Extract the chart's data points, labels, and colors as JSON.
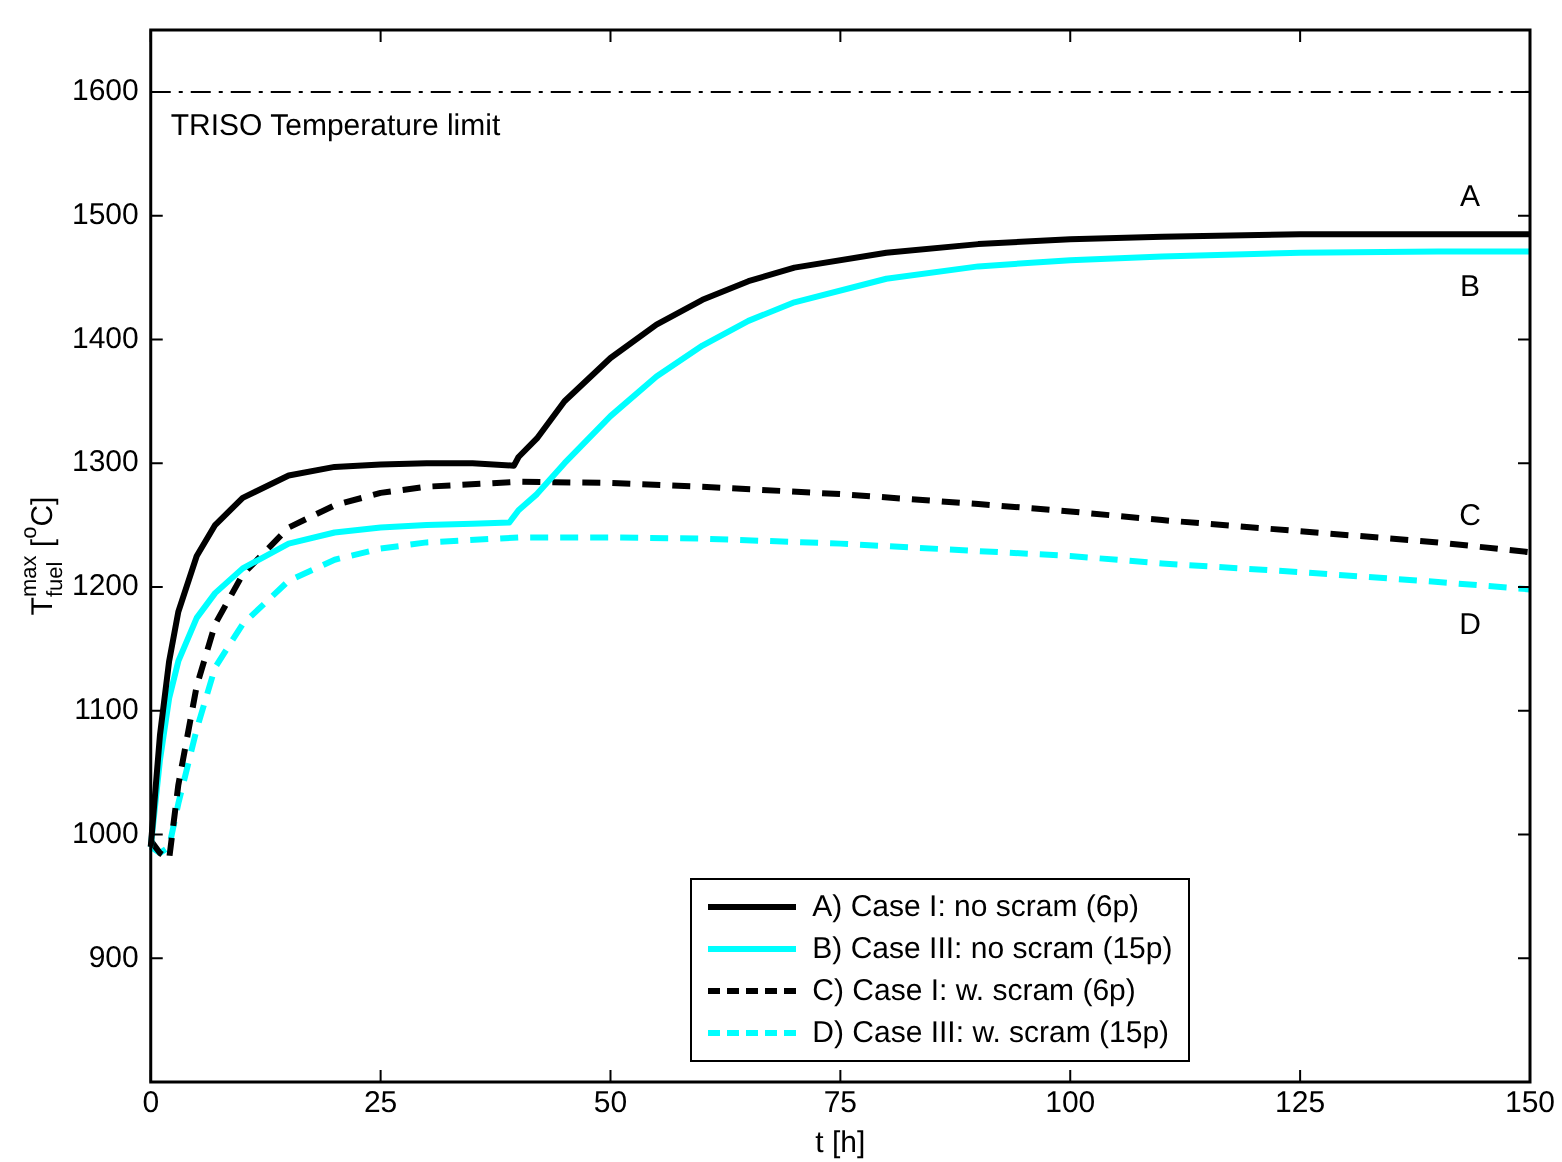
{
  "chart_data": {
    "type": "line",
    "xlabel": "t [h]",
    "ylabel": "T$^{max}$$_{fuel}$ [$^{o}$C]",
    "xlim": [
      0,
      150
    ],
    "xticks": [
      0,
      25,
      50,
      75,
      100,
      125,
      150
    ],
    "ylim": [
      800,
      1650
    ],
    "yticks": [
      900,
      1000,
      1100,
      1200,
      1300,
      1400,
      1500,
      1600
    ],
    "grid": false,
    "legend": "bottom",
    "marker": "none",
    "series": [
      {
        "name": "A) Case I: no scram (6p)",
        "color": "#000000",
        "line_style": "solid",
        "x": [
          0,
          1,
          2,
          3,
          5,
          7,
          10,
          15,
          20,
          25,
          30,
          35,
          39.5,
          40,
          42,
          45,
          50,
          55,
          60,
          65,
          70,
          80,
          90,
          100,
          110,
          125,
          140,
          150
        ],
        "values": [
          990,
          1080,
          1140,
          1180,
          1225,
          1250,
          1272,
          1290,
          1297,
          1299,
          1300,
          1300,
          1298,
          1305,
          1320,
          1350,
          1385,
          1412,
          1432,
          1447,
          1458,
          1470,
          1477,
          1481,
          1483,
          1485,
          1485,
          1485
        ]
      },
      {
        "name": "B) Case III: no scram (15p)",
        "color": "#00ffff",
        "line_style": "solid",
        "x": [
          0,
          1,
          2,
          3,
          5,
          7,
          10,
          15,
          20,
          25,
          30,
          35,
          39,
          40,
          42,
          45,
          50,
          55,
          60,
          65,
          70,
          80,
          90,
          100,
          110,
          125,
          140,
          150
        ],
        "values": [
          990,
          1060,
          1110,
          1140,
          1175,
          1195,
          1215,
          1235,
          1244,
          1248,
          1250,
          1251,
          1252,
          1262,
          1275,
          1300,
          1338,
          1370,
          1395,
          1415,
          1430,
          1449,
          1459,
          1464,
          1467,
          1470,
          1471,
          1471
        ]
      },
      {
        "name": "C) Case I: w. scram (6p)",
        "color": "#000000",
        "line_style": "dashed",
        "x": [
          0,
          1,
          2,
          3,
          5,
          7,
          10,
          15,
          20,
          25,
          30,
          40,
          50,
          60,
          75,
          90,
          100,
          110,
          125,
          140,
          150
        ],
        "values": [
          995,
          985,
          980,
          1040,
          1120,
          1170,
          1210,
          1248,
          1266,
          1276,
          1281,
          1285,
          1284,
          1281,
          1275,
          1267,
          1261,
          1254,
          1245,
          1236,
          1228
        ]
      },
      {
        "name": "D) Case III: w. scram (15p)",
        "color": "#00ffff",
        "line_style": "dashed",
        "x": [
          0,
          1,
          2,
          3,
          5,
          7,
          10,
          15,
          20,
          25,
          30,
          40,
          50,
          60,
          75,
          90,
          100,
          110,
          125,
          140,
          150
        ],
        "values": [
          990,
          985,
          990,
          1025,
          1085,
          1135,
          1170,
          1205,
          1222,
          1231,
          1236,
          1240,
          1240,
          1239,
          1235,
          1229,
          1225,
          1219,
          1212,
          1204,
          1198
        ]
      }
    ],
    "ref_lines": [
      {
        "axis": "y",
        "value": 1600,
        "label": "TRISO Temperature limit",
        "line_style": "dashed",
        "color": "#000000"
      }
    ],
    "annotations": [
      "A",
      "B",
      "C",
      "D"
    ]
  }
}
